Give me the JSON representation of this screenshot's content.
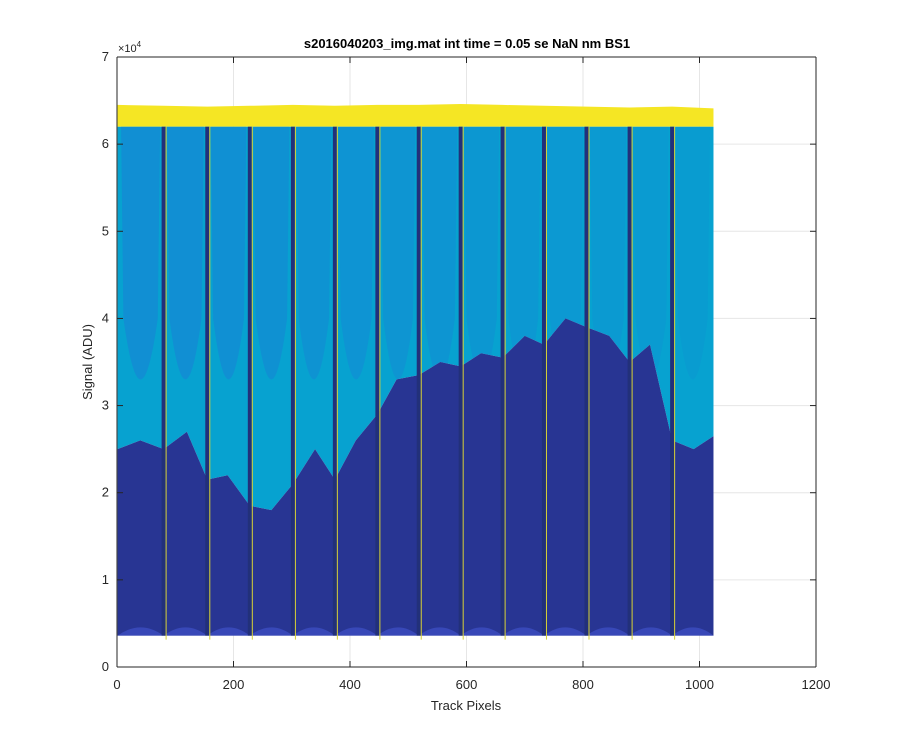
{
  "chart_data": {
    "type": "area",
    "title": "s2016040203_img.mat int time = 0.05 se  NaN nm BS1",
    "xlabel": "Track Pixels",
    "ylabel": "Signal (ADU)",
    "y_exponent_label": "×10",
    "y_exponent_power": "4",
    "xlim": [
      0,
      1200
    ],
    "ylim": [
      0,
      70000
    ],
    "x_ticks": [
      0,
      200,
      400,
      600,
      800,
      1000,
      1200
    ],
    "y_ticks": [
      0,
      10000,
      20000,
      30000,
      40000,
      50000,
      60000,
      70000
    ],
    "x_tick_labels": [
      "0",
      "200",
      "400",
      "600",
      "800",
      "1000",
      "1200"
    ],
    "y_tick_labels": [
      "0",
      "1",
      "2",
      "3",
      "4",
      "5",
      "6",
      "7"
    ],
    "grid": true,
    "track_pixel_range": [
      1,
      1024
    ],
    "channel_boundaries": [
      80,
      155,
      228,
      302,
      374,
      447,
      518,
      590,
      662,
      733,
      806,
      880,
      953
    ],
    "channel_count": 14,
    "floor_level": 3600,
    "saturation_level": 62000,
    "top_level": 64500,
    "series": [
      {
        "color": "#f5e624",
        "values_x": [
          0,
          80,
          155,
          228,
          302,
          374,
          447,
          518,
          590,
          662,
          733,
          806,
          880,
          953,
          1024
        ],
        "values_y": [
          64500,
          64400,
          64300,
          64400,
          64500,
          64400,
          64500,
          64500,
          64600,
          64500,
          64400,
          64300,
          64200,
          64300,
          64100
        ]
      },
      {
        "color": "#1a7fd6",
        "values_x": [
          0,
          40,
          80,
          120,
          155,
          190,
          228,
          265,
          302,
          340,
          374,
          410,
          447,
          480,
          518,
          555,
          590,
          625,
          662,
          700,
          733,
          770,
          806,
          845,
          880,
          915,
          953,
          990,
          1024
        ],
        "values_y": [
          25000,
          26000,
          25000,
          27000,
          21500,
          22000,
          18500,
          18000,
          21000,
          25000,
          21500,
          26000,
          29000,
          33000,
          33500,
          35000,
          34500,
          36000,
          35500,
          38000,
          37000,
          40000,
          39000,
          38000,
          35000,
          37000,
          26000,
          25000,
          26500
        ]
      },
      {
        "color": "#07a2d0",
        "values_x": [
          0,
          40,
          80,
          120,
          155,
          190,
          228,
          265,
          302,
          340,
          374,
          410,
          447,
          480,
          518,
          555,
          590,
          625,
          662,
          700,
          733,
          770,
          806,
          845,
          880,
          915,
          953,
          990,
          1024
        ],
        "values_y": [
          62000,
          62000,
          62000,
          62000,
          62000,
          62000,
          62000,
          62000,
          62000,
          62000,
          62000,
          62000,
          62000,
          62000,
          62000,
          62000,
          62000,
          62000,
          62000,
          62000,
          62000,
          62000,
          62000,
          62000,
          62000,
          62000,
          62000,
          62000,
          62000
        ]
      },
      {
        "color": "#283593",
        "values_x": [
          0,
          1024
        ],
        "values_y": [
          21000,
          21000
        ]
      }
    ]
  }
}
